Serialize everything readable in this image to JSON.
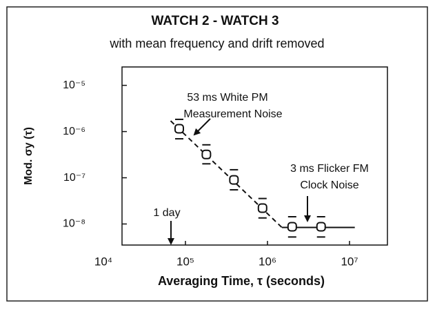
{
  "chart_data": {
    "type": "scatter",
    "title": "WATCH 2 - WATCH 3",
    "subtitle": "with mean frequency and drift removed",
    "x_label": "Averaging Time, τ (seconds)",
    "y_label": "Mod. σy (τ)",
    "log_x": true,
    "log_y": true,
    "xlim": [
      10000,
      10000000
    ],
    "ylim": [
      3.5e-09,
      2.5e-05
    ],
    "xticks": [
      {
        "value": 10000,
        "label": "10⁴"
      },
      {
        "value": 100000,
        "label": "10⁵"
      },
      {
        "value": 1000000,
        "label": "10⁶"
      },
      {
        "value": 10000000,
        "label": "10⁷"
      }
    ],
    "yticks": [
      {
        "value": 1e-08,
        "label": "10⁻⁸"
      },
      {
        "value": 1e-07,
        "label": "10⁻⁷"
      },
      {
        "value": 1e-06,
        "label": "10⁻⁶"
      },
      {
        "value": 1e-05,
        "label": "10⁻⁵"
      }
    ],
    "points": {
      "color": "#111111",
      "x": [
        84000,
        180000,
        390000,
        870000,
        2000000,
        4500000
      ],
      "values": [
        1.15e-06,
        3.2e-07,
        9e-08,
        2.2e-08,
        8.7e-09,
        8.7e-09
      ],
      "error_low": [
        8e-07,
        2.3e-07,
        6.3e-08,
        1.55e-08,
        6e-09,
        6e-09
      ],
      "error_high": [
        1.6e-06,
        4.5e-07,
        1.3e-07,
        3.1e-08,
        1.25e-08,
        1.25e-08
      ]
    },
    "lines": [
      {
        "style": "dashed",
        "x": [
          66000,
          1500000
        ],
        "values": [
          1.7e-06,
          8.4e-09
        ]
      },
      {
        "style": "solid",
        "x": [
          1500000,
          11600000
        ],
        "values": [
          8.4e-09,
          8.4e-09
        ]
      }
    ],
    "annotations": [
      {
        "lines": [
          "53 ms White PM",
          "Measurement Noise"
        ]
      },
      {
        "lines": [
          "3 ms Flicker FM",
          "Clock Noise"
        ]
      },
      {
        "lines": [
          "1 day"
        ]
      }
    ]
  }
}
